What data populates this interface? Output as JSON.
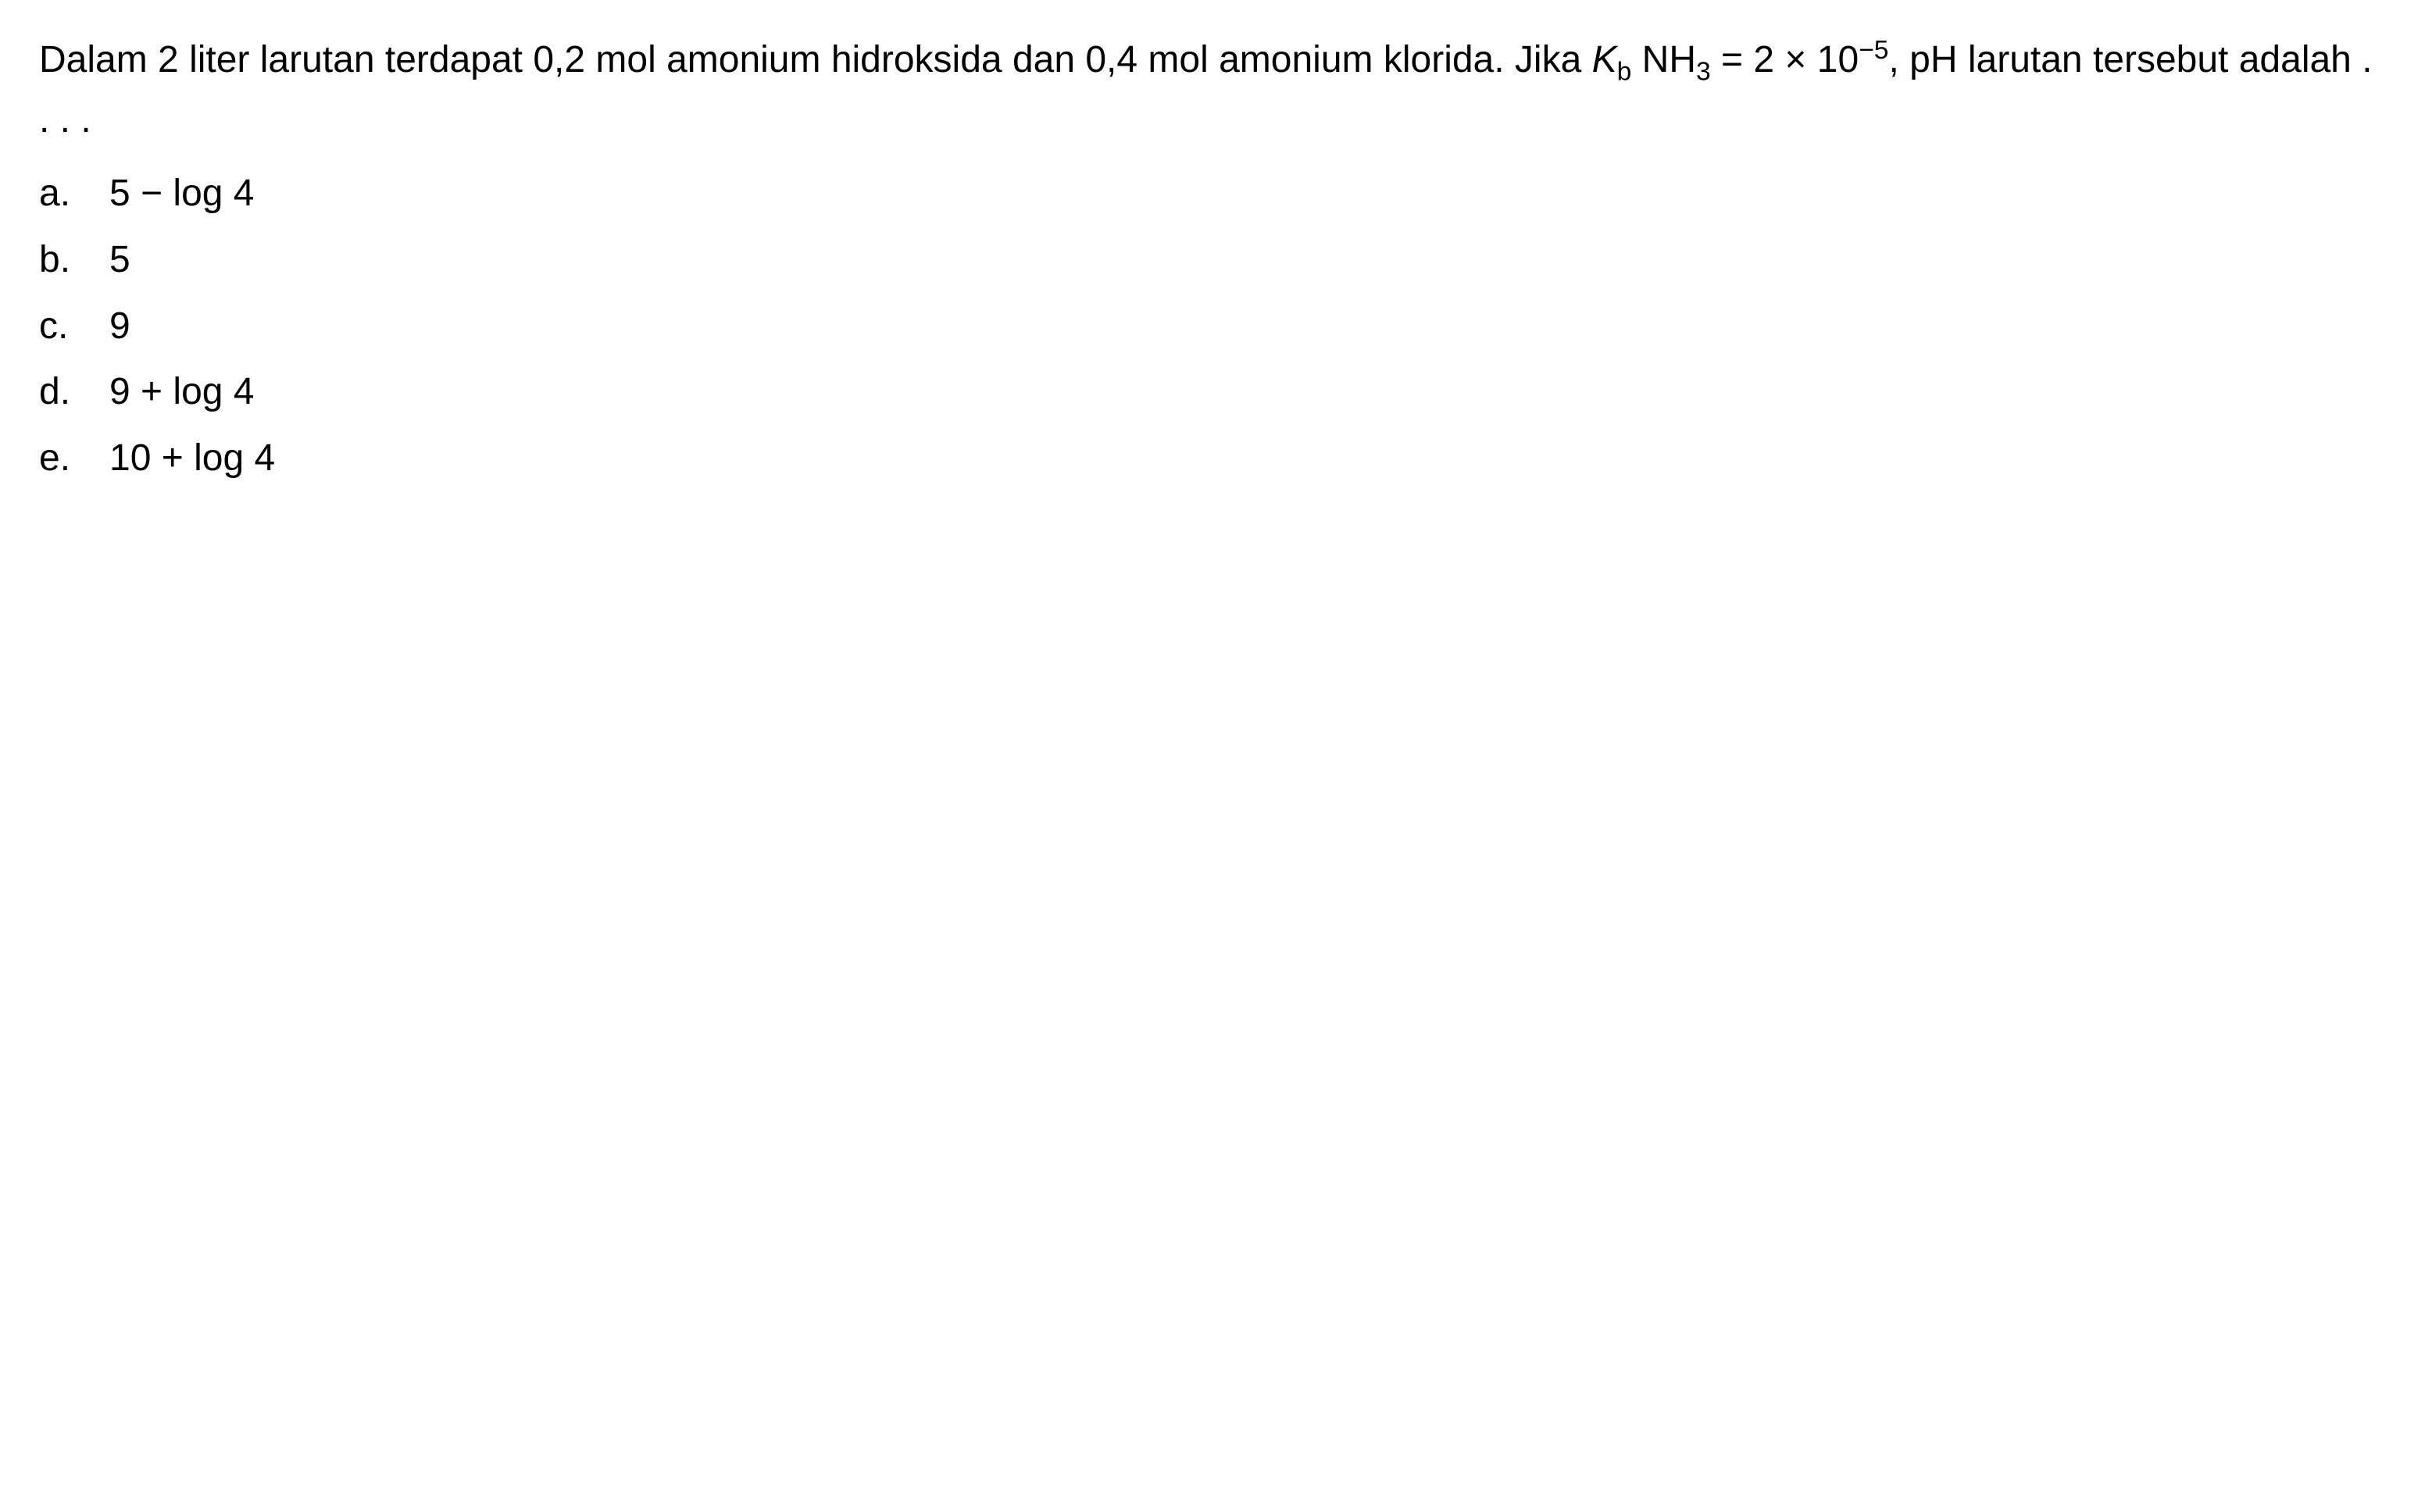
{
  "question": {
    "line1_part1": "Dalam 2 liter larutan terdapat 0,2 mol amonium hidroksida dan 0,4 mol amonium klorida. Jika ",
    "k_letter": "K",
    "k_sub": "b",
    "nh_text": " NH",
    "nh_sub": "3",
    "equals_text": " = 2 × 10",
    "exp_text": "−5",
    "line1_part2": ", pH larutan tersebut adalah . . . ."
  },
  "options": [
    {
      "letter": "a.",
      "text": "5 − log 4"
    },
    {
      "letter": "b.",
      "text": "5"
    },
    {
      "letter": "c.",
      "text": "9"
    },
    {
      "letter": "d.",
      "text": "9 + log 4"
    },
    {
      "letter": "e.",
      "text": "10 + log 4"
    }
  ],
  "colors": {
    "background": "#ffffff",
    "text": "#000000"
  },
  "typography": {
    "fontsize_pt": 48,
    "line_height": 1.5,
    "font_family": "Arial"
  }
}
